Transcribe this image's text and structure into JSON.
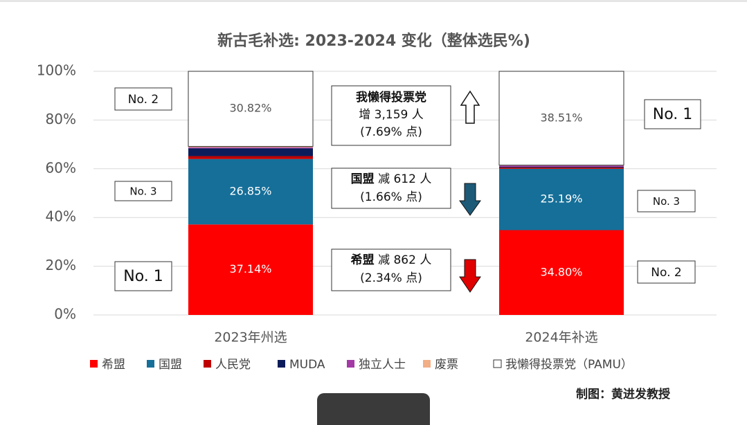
{
  "chart_data": {
    "type": "stacked-bar",
    "title": "新古毛补选: 2023-2024 变化（整体选民%)",
    "categories": [
      "2023年州选",
      "2024年补选"
    ],
    "series": [
      {
        "name": "希盟",
        "color": "#ff0000",
        "values": [
          37.14,
          34.8
        ],
        "value_labels": [
          "37.14%",
          "34.80%"
        ]
      },
      {
        "name": "国盟",
        "color": "#156f99",
        "values": [
          26.85,
          25.19
        ],
        "value_labels": [
          "26.85%",
          "25.19%"
        ]
      },
      {
        "name": "人民党",
        "color": "#c00000",
        "values": [
          1.2,
          0.5
        ]
      },
      {
        "name": "MUDA",
        "color": "#0c1c5a",
        "values": [
          3.2,
          0.3
        ]
      },
      {
        "name": "独立人士",
        "color": "#a33aa6",
        "values": [
          0.4,
          0.5
        ]
      },
      {
        "name": "废票",
        "color": "#f2ae86",
        "values": [
          0.39,
          0.2
        ]
      },
      {
        "name": "我懒得投票党（PAMU）",
        "color": "#ffffff",
        "values": [
          30.82,
          38.51
        ],
        "value_labels": [
          "30.82%",
          "38.51%"
        ]
      }
    ],
    "ylim": [
      0,
      100
    ],
    "yticks": [
      {
        "value": 0,
        "label": "0%"
      },
      {
        "value": 20,
        "label": "20%"
      },
      {
        "value": 40,
        "label": "40%"
      },
      {
        "value": 60,
        "label": "60%"
      },
      {
        "value": 80,
        "label": "80%"
      },
      {
        "value": 100,
        "label": "100%"
      }
    ],
    "grid": true,
    "rank_labels": [
      "No. 2",
      "No. 3",
      "No. 1",
      "No. 1",
      "No. 3",
      "No. 2"
    ],
    "change_notes": [
      {
        "head": "我懒得投票党",
        "lines": [
          "增 3,159 人",
          "(7.69% 点)"
        ]
      },
      {
        "head": "国盟",
        "lines": [
          "减 612 人",
          "(1.66% 点)"
        ]
      },
      {
        "head": "希盟",
        "lines": [
          "减 862 人",
          "(2.34% 点)"
        ]
      }
    ],
    "credit": "制图：黄进发教授"
  }
}
